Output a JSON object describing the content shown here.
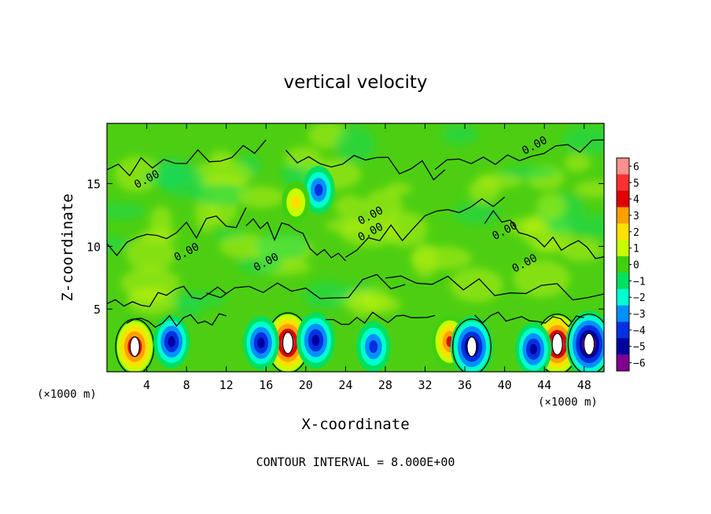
{
  "chart_data": {
    "type": "heatmap",
    "title": "vertical velocity",
    "xlabel": "X-coordinate",
    "ylabel": "Z-coordinate",
    "x_unit_left": "(×1000 m)",
    "x_unit_right": "(×1000 m)",
    "footer": "CONTOUR INTERVAL = 8.000E+00",
    "xlim": [
      0,
      50
    ],
    "ylim": [
      0,
      19.8
    ],
    "x_ticks": [
      4,
      8,
      12,
      16,
      20,
      24,
      28,
      32,
      36,
      40,
      44,
      48
    ],
    "y_ticks": [
      5,
      10,
      15
    ],
    "contour_label_text": "0.00",
    "contour_labels": [
      {
        "x": 3,
        "y": 14.6
      },
      {
        "x": 42,
        "y": 17.3
      },
      {
        "x": 7,
        "y": 8.8
      },
      {
        "x": 15,
        "y": 8.0
      },
      {
        "x": 25.5,
        "y": 11.7
      },
      {
        "x": 25.5,
        "y": 10.4
      },
      {
        "x": 41,
        "y": 7.9
      },
      {
        "x": 39,
        "y": 10.5
      }
    ],
    "colorbar": {
      "ticks": [
        "6",
        "5",
        "4",
        "3",
        "2",
        "1",
        "0",
        "−1",
        "−2",
        "−3",
        "−4",
        "−5",
        "−6"
      ],
      "colors": [
        "#ff9090",
        "#ff3030",
        "#e00000",
        "#ffa000",
        "#ffe000",
        "#c8ff00",
        "#40d010",
        "#00e060",
        "#00ffd0",
        "#0090ff",
        "#0030e0",
        "#0000a0",
        "#800090"
      ]
    },
    "features": [
      {
        "type": "updraft",
        "x": 2.8,
        "z": 2.0,
        "strength": 5.0
      },
      {
        "type": "updraft",
        "x": 18.2,
        "z": 2.3,
        "strength": 6.0
      },
      {
        "type": "updraft",
        "x": 45.3,
        "z": 2.2,
        "strength": 6.0
      },
      {
        "type": "updraft",
        "x": 34.5,
        "z": 2.4,
        "strength": 3.5
      },
      {
        "type": "downdraft",
        "x": 48.5,
        "z": 2.2,
        "strength": -6.0
      },
      {
        "type": "downdraft",
        "x": 6.5,
        "z": 2.4,
        "strength": -3.5
      },
      {
        "type": "downdraft",
        "x": 21.0,
        "z": 2.5,
        "strength": -4.0
      },
      {
        "type": "downdraft",
        "x": 15.5,
        "z": 2.3,
        "strength": -3.5
      },
      {
        "type": "downdraft",
        "x": 36.7,
        "z": 2.0,
        "strength": -5.0
      },
      {
        "type": "downdraft",
        "x": 42.9,
        "z": 1.8,
        "strength": -3.5
      },
      {
        "type": "downdraft",
        "x": 26.8,
        "z": 2.0,
        "strength": -3.0
      },
      {
        "type": "downdraft",
        "x": 21.3,
        "z": 14.5,
        "strength": -2.5
      },
      {
        "type": "updraft",
        "x": 19.0,
        "z": 13.5,
        "strength": 1.5
      }
    ]
  }
}
